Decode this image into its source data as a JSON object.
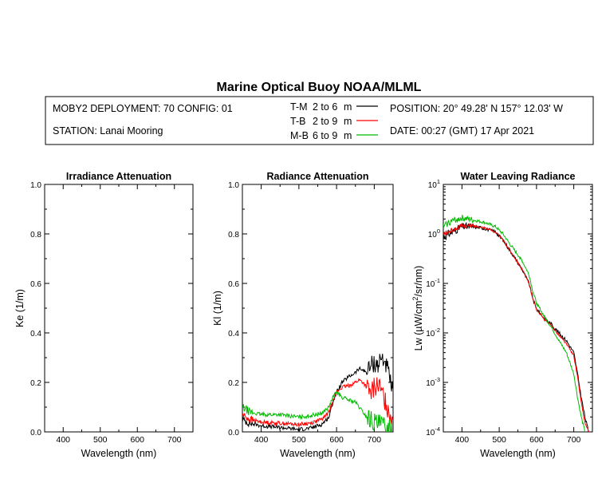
{
  "title": "Marine Optical Buoy NOAA/MLML",
  "header": {
    "deployment": "MOBY2 DEPLOYMENT: 70 CONFIG: 01",
    "station": "STATION: Lanai Mooring",
    "position": "POSITION: 20° 49.28' N   157° 12.03' W",
    "date": "DATE: 00:27 (GMT) 17 Apr 2021",
    "legend": [
      {
        "code": "T-M",
        "range": "2 to 6",
        "unit": "m",
        "color": "#000000"
      },
      {
        "code": "T-B",
        "range": "2 to 9",
        "unit": "m",
        "color": "#ff0000"
      },
      {
        "code": "M-B",
        "range": "6 to 9",
        "unit": "m",
        "color": "#00bb00"
      }
    ]
  },
  "chart_data": [
    {
      "type": "line",
      "title": "Irradiance Attenuation",
      "xlabel": "Wavelength (nm)",
      "ylabel": "Ke  (1/m)",
      "xlim": [
        350,
        750
      ],
      "ylim": [
        0,
        1
      ],
      "xticks": [
        "400",
        "500",
        "600",
        "700"
      ],
      "yticks": [
        "0.0",
        "0.2",
        "0.4",
        "0.6",
        "0.8",
        "1.0"
      ],
      "series": []
    },
    {
      "type": "line",
      "title": "Radiance Attenuation",
      "xlabel": "Wavelength (nm)",
      "ylabel": "Kl  (1/m)",
      "xlim": [
        350,
        750
      ],
      "ylim": [
        0,
        1
      ],
      "xticks": [
        "400",
        "500",
        "600",
        "700"
      ],
      "yticks": [
        "0.0",
        "0.2",
        "0.4",
        "0.6",
        "0.8",
        "1.0"
      ],
      "series": [
        {
          "code": "T-M",
          "color": "#000000",
          "noise": 0.008,
          "x": [
            350,
            370,
            400,
            450,
            500,
            530,
            560,
            580,
            590,
            600,
            615,
            630,
            650,
            660,
            670,
            680,
            690,
            700,
            710,
            720,
            730,
            740,
            750
          ],
          "y": [
            0.05,
            0.035,
            0.025,
            0.018,
            0.01,
            0.015,
            0.03,
            0.06,
            0.12,
            0.16,
            0.2,
            0.22,
            0.24,
            0.255,
            0.25,
            0.24,
            0.265,
            0.28,
            0.27,
            0.3,
            0.28,
            0.22,
            0.15
          ]
        },
        {
          "code": "T-B",
          "color": "#ff0000",
          "noise": 0.008,
          "x": [
            350,
            370,
            400,
            450,
            500,
            530,
            560,
            580,
            590,
            600,
            615,
            630,
            650,
            660,
            670,
            680,
            690,
            700,
            710,
            720,
            730,
            740,
            750
          ],
          "y": [
            0.07,
            0.05,
            0.04,
            0.035,
            0.03,
            0.035,
            0.05,
            0.08,
            0.13,
            0.16,
            0.18,
            0.185,
            0.2,
            0.21,
            0.2,
            0.18,
            0.15,
            0.18,
            0.19,
            0.16,
            0.12,
            0.08,
            0.05
          ]
        },
        {
          "code": "M-B",
          "color": "#00bb00",
          "noise": 0.008,
          "x": [
            350,
            370,
            400,
            450,
            500,
            530,
            560,
            580,
            590,
            600,
            615,
            630,
            650,
            660,
            670,
            680,
            690,
            700,
            710,
            720,
            730,
            740,
            750
          ],
          "y": [
            0.1,
            0.08,
            0.07,
            0.07,
            0.06,
            0.065,
            0.075,
            0.1,
            0.14,
            0.16,
            0.14,
            0.13,
            0.12,
            0.1,
            0.08,
            0.06,
            0.05,
            0.04,
            0.03,
            0.03,
            0.02,
            0.02,
            0.01
          ]
        }
      ]
    },
    {
      "type": "line",
      "title": "Water Leaving Radiance",
      "xlabel": "Wavelength (nm)",
      "ylabel": "Lw  (µW/cm²/sr/nm)",
      "yscale": "log",
      "xlim": [
        350,
        750
      ],
      "ylim": [
        0.0001,
        10
      ],
      "xticks": [
        "400",
        "500",
        "600",
        "700"
      ],
      "yticks": [
        {
          "base": "10",
          "exp": "1"
        },
        {
          "base": "10",
          "exp": "0"
        },
        {
          "base": "10",
          "exp": "-1"
        },
        {
          "base": "10",
          "exp": "-2"
        },
        {
          "base": "10",
          "exp": "-3"
        },
        {
          "base": "10",
          "exp": "-4"
        }
      ],
      "series": [
        {
          "code": "T-M",
          "color": "#000000",
          "noise": 0.035,
          "x": [
            350,
            370,
            400,
            430,
            460,
            490,
            510,
            530,
            560,
            580,
            590,
            600,
            610,
            620,
            640,
            660,
            680,
            700,
            710,
            720,
            730,
            740,
            750
          ],
          "y": [
            0.85,
            1.05,
            1.4,
            1.4,
            1.3,
            1.1,
            0.75,
            0.45,
            0.2,
            0.1,
            0.05,
            0.03,
            0.025,
            0.02,
            0.015,
            0.01,
            0.007,
            0.004,
            0.0015,
            0.0005,
            0.0002,
            0.0001,
            8e-05
          ]
        },
        {
          "code": "T-B",
          "color": "#ff0000",
          "noise": 0.02,
          "x": [
            350,
            370,
            400,
            430,
            460,
            490,
            510,
            530,
            560,
            580,
            590,
            600,
            610,
            620,
            640,
            660,
            680,
            700,
            710,
            720,
            730,
            740,
            750
          ],
          "y": [
            1.0,
            1.15,
            1.45,
            1.45,
            1.35,
            1.1,
            0.75,
            0.45,
            0.2,
            0.1,
            0.05,
            0.03,
            0.024,
            0.019,
            0.014,
            0.009,
            0.006,
            0.0035,
            0.0013,
            0.0004,
            0.00015,
            0.0001,
            8e-05
          ]
        },
        {
          "code": "M-B",
          "color": "#00bb00",
          "noise": 0.03,
          "x": [
            350,
            370,
            400,
            430,
            460,
            490,
            510,
            530,
            560,
            580,
            590,
            600,
            610,
            620,
            640,
            660,
            680,
            700,
            710,
            720,
            730,
            740,
            750
          ],
          "y": [
            1.4,
            1.8,
            2.1,
            1.9,
            1.7,
            1.4,
            1.0,
            0.6,
            0.3,
            0.15,
            0.07,
            0.04,
            0.03,
            0.022,
            0.013,
            0.007,
            0.004,
            0.0015,
            0.0005,
            0.0002,
            0.0001,
            8e-05,
            8e-05
          ]
        }
      ]
    }
  ]
}
